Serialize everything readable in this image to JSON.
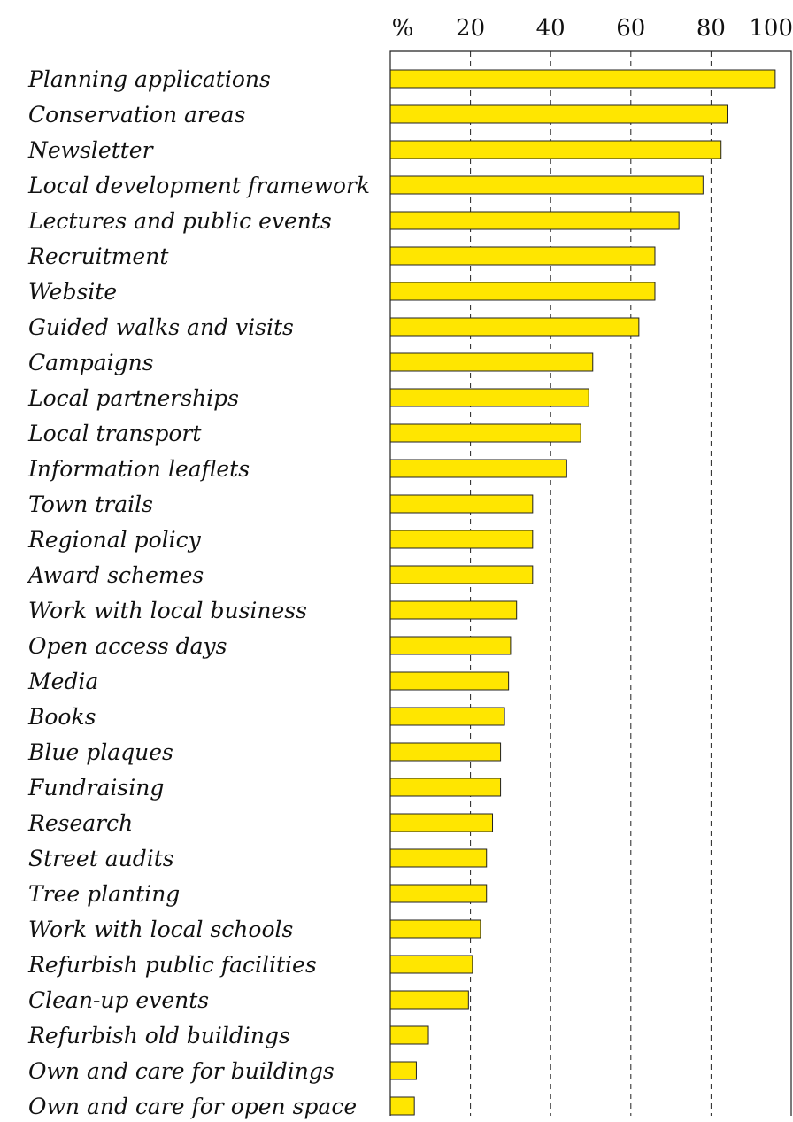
{
  "chart_data": {
    "type": "bar",
    "orientation": "horizontal",
    "title": "",
    "xlabel": "",
    "ylabel": "",
    "unit_label": "%",
    "xlim": [
      0,
      100
    ],
    "xticks": [
      20,
      40,
      60,
      80,
      100
    ],
    "grid": "vertical dashed",
    "bar_color": "#ffe600",
    "categories": [
      "Planning applications",
      "Conservation areas",
      "Newsletter",
      "Local development framework",
      "Lectures and public events",
      "Recruitment",
      "Website",
      "Guided walks and visits",
      "Campaigns",
      "Local partnerships",
      "Local transport",
      "Information leaflets",
      "Town trails",
      "Regional policy",
      "Award schemes",
      "Work with local business",
      "Open access days",
      "Media",
      "Books",
      "Blue plaques",
      "Fundraising",
      "Research",
      "Street audits",
      "Tree planting",
      "Work with local schools",
      "Refurbish public facilities",
      "Clean-up events",
      "Refurbish old buildings",
      "Own and care for buildings",
      "Own and care for open space"
    ],
    "values": [
      96,
      84,
      82.5,
      78,
      72,
      66,
      66,
      62,
      50.5,
      49.5,
      47.5,
      44,
      35.5,
      35.5,
      35.5,
      31.5,
      30,
      29.5,
      28.5,
      27.5,
      27.5,
      25.5,
      24,
      24,
      22.5,
      20.5,
      19.5,
      9.5,
      6.5,
      6
    ]
  }
}
